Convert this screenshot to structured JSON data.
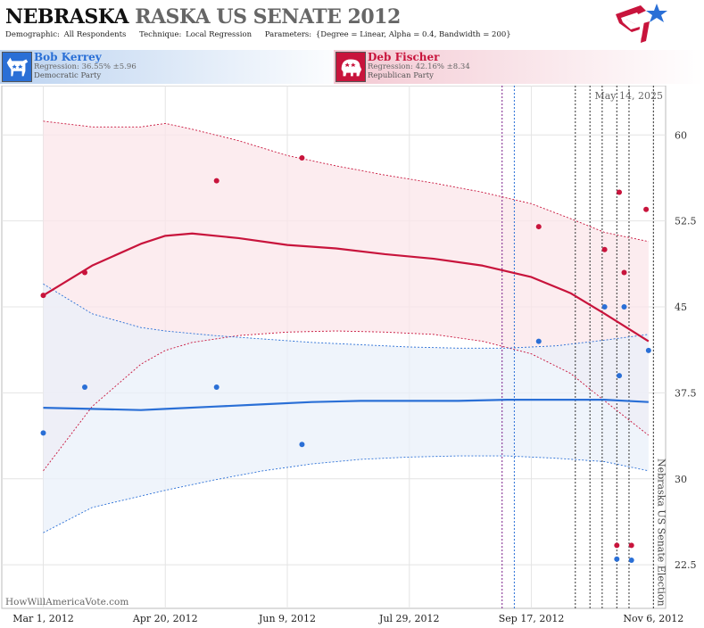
{
  "header": {
    "title_main": "NEBRASKA",
    "title_sub": "RASKA US SENATE 2012",
    "demographic_label": "Demographic:",
    "demographic_value": "All Respondents",
    "technique_label": "Technique:",
    "technique_value": "Local Regression",
    "parameters_label": "Parameters:",
    "parameters_value": "{Degree = Linear, Alpha = 0.4, Bandwidth = 200}"
  },
  "candidates": [
    {
      "name": "Bob Kerrey",
      "regression": "Regression: 36.55% ±5.96",
      "party": "Democratic Party",
      "color": "#2a6fd6",
      "icon": "donkey-icon"
    },
    {
      "name": "Deb Fischer",
      "regression": "Regression: 42.16% ±8.34",
      "party": "Republican Party",
      "color": "#c8143c",
      "icon": "elephant-icon"
    }
  ],
  "chart_data": {
    "type": "scatter",
    "date_label": "May 14, 2025",
    "watermark": "HowWillAmericaVote.com",
    "event_label": "Nebraska US Senate Election",
    "x_ticks": [
      "2012-03-01",
      "2012-04-20",
      "2012-06-09",
      "2012-07-29",
      "2012-09-17",
      "2012-11-06"
    ],
    "x_tick_labels": [
      "Mar 1, 2012",
      "Apr 20, 2012",
      "Jun 9, 2012",
      "Jul 29, 2012",
      "Sep 17, 2012",
      "Nov 6, 2012"
    ],
    "xlim": [
      "2012-02-13",
      "2012-11-11"
    ],
    "y_ticks": [
      22.5,
      30,
      37.5,
      45,
      52.5,
      60
    ],
    "y_tick_labels": [
      "22.5",
      "30",
      "37.5",
      "45",
      "52.5",
      "60"
    ],
    "ylim": [
      18.7,
      64.3
    ],
    "grid": true,
    "election_date": "2012-11-06",
    "poll_lines": [
      {
        "date": "2012-09-05",
        "color": "#7a1f8a"
      },
      {
        "date": "2012-09-10",
        "color": "#2a6fd6"
      },
      {
        "date": "2012-10-05",
        "color": "#333333"
      },
      {
        "date": "2012-10-11",
        "color": "#333333"
      },
      {
        "date": "2012-10-16",
        "color": "#333333"
      },
      {
        "date": "2012-10-22",
        "color": "#333333"
      },
      {
        "date": "2012-10-27",
        "color": "#333333"
      }
    ],
    "series": [
      {
        "name": "Deb Fischer",
        "color": "#c8143c",
        "band_fill": "#fbe6ea",
        "points": [
          {
            "x": "2012-03-01",
            "y": 46
          },
          {
            "x": "2012-03-18",
            "y": 48
          },
          {
            "x": "2012-05-11",
            "y": 56
          },
          {
            "x": "2012-06-15",
            "y": 58
          },
          {
            "x": "2012-09-20",
            "y": 52
          },
          {
            "x": "2012-10-17",
            "y": 50
          },
          {
            "x": "2012-10-23",
            "y": 55
          },
          {
            "x": "2012-10-25",
            "y": 48
          },
          {
            "x": "2012-11-03",
            "y": 53.5
          },
          {
            "x": "2012-10-22",
            "y": 24.2
          },
          {
            "x": "2012-10-28",
            "y": 24.2
          }
        ],
        "fit": [
          {
            "x": "2012-03-01",
            "y": 46,
            "lo": 30.7,
            "hi": 61.2
          },
          {
            "x": "2012-03-21",
            "y": 48.6,
            "lo": 36.3,
            "hi": 60.7
          },
          {
            "x": "2012-04-10",
            "y": 50.5,
            "lo": 40,
            "hi": 60.7
          },
          {
            "x": "2012-04-20",
            "y": 51.2,
            "lo": 41.2,
            "hi": 61
          },
          {
            "x": "2012-05-01",
            "y": 51.4,
            "lo": 41.9,
            "hi": 60.5
          },
          {
            "x": "2012-05-20",
            "y": 51,
            "lo": 42.5,
            "hi": 59.5
          },
          {
            "x": "2012-06-09",
            "y": 50.4,
            "lo": 42.8,
            "hi": 58.2
          },
          {
            "x": "2012-06-29",
            "y": 50.1,
            "lo": 42.9,
            "hi": 57.3
          },
          {
            "x": "2012-07-19",
            "y": 49.6,
            "lo": 42.8,
            "hi": 56.5
          },
          {
            "x": "2012-08-08",
            "y": 49.2,
            "lo": 42.6,
            "hi": 55.8
          },
          {
            "x": "2012-08-28",
            "y": 48.6,
            "lo": 42,
            "hi": 55
          },
          {
            "x": "2012-09-17",
            "y": 47.6,
            "lo": 40.9,
            "hi": 54
          },
          {
            "x": "2012-10-03",
            "y": 46.2,
            "lo": 39.2,
            "hi": 52.7
          },
          {
            "x": "2012-10-17",
            "y": 44.4,
            "lo": 36.8,
            "hi": 51.5
          },
          {
            "x": "2012-11-04",
            "y": 42,
            "lo": 33.8,
            "hi": 50.7
          }
        ]
      },
      {
        "name": "Bob Kerrey",
        "color": "#2a6fd6",
        "band_fill": "#eaf0fa",
        "points": [
          {
            "x": "2012-03-01",
            "y": 34
          },
          {
            "x": "2012-03-18",
            "y": 38
          },
          {
            "x": "2012-05-11",
            "y": 38
          },
          {
            "x": "2012-06-15",
            "y": 33
          },
          {
            "x": "2012-09-20",
            "y": 42
          },
          {
            "x": "2012-10-17",
            "y": 45
          },
          {
            "x": "2012-10-23",
            "y": 39
          },
          {
            "x": "2012-10-25",
            "y": 45
          },
          {
            "x": "2012-11-04",
            "y": 41.2
          },
          {
            "x": "2012-10-22",
            "y": 23
          },
          {
            "x": "2012-10-28",
            "y": 22.9
          }
        ],
        "fit": [
          {
            "x": "2012-03-01",
            "y": 36.2,
            "lo": 25.3,
            "hi": 47
          },
          {
            "x": "2012-03-21",
            "y": 36.1,
            "lo": 27.5,
            "hi": 44.4
          },
          {
            "x": "2012-04-10",
            "y": 36,
            "lo": 28.5,
            "hi": 43.2
          },
          {
            "x": "2012-04-20",
            "y": 36.1,
            "lo": 29,
            "hi": 42.9
          },
          {
            "x": "2012-05-10",
            "y": 36.3,
            "lo": 29.9,
            "hi": 42.5
          },
          {
            "x": "2012-05-30",
            "y": 36.5,
            "lo": 30.7,
            "hi": 42.2
          },
          {
            "x": "2012-06-19",
            "y": 36.7,
            "lo": 31.3,
            "hi": 41.9
          },
          {
            "x": "2012-07-09",
            "y": 36.8,
            "lo": 31.7,
            "hi": 41.7
          },
          {
            "x": "2012-07-29",
            "y": 36.8,
            "lo": 31.9,
            "hi": 41.5
          },
          {
            "x": "2012-08-18",
            "y": 36.8,
            "lo": 32,
            "hi": 41.4
          },
          {
            "x": "2012-09-07",
            "y": 36.9,
            "lo": 32,
            "hi": 41.4
          },
          {
            "x": "2012-09-27",
            "y": 36.9,
            "lo": 31.8,
            "hi": 41.6
          },
          {
            "x": "2012-10-17",
            "y": 36.9,
            "lo": 31.5,
            "hi": 42.1
          },
          {
            "x": "2012-11-04",
            "y": 36.7,
            "lo": 30.7,
            "hi": 42.6
          }
        ]
      }
    ]
  }
}
